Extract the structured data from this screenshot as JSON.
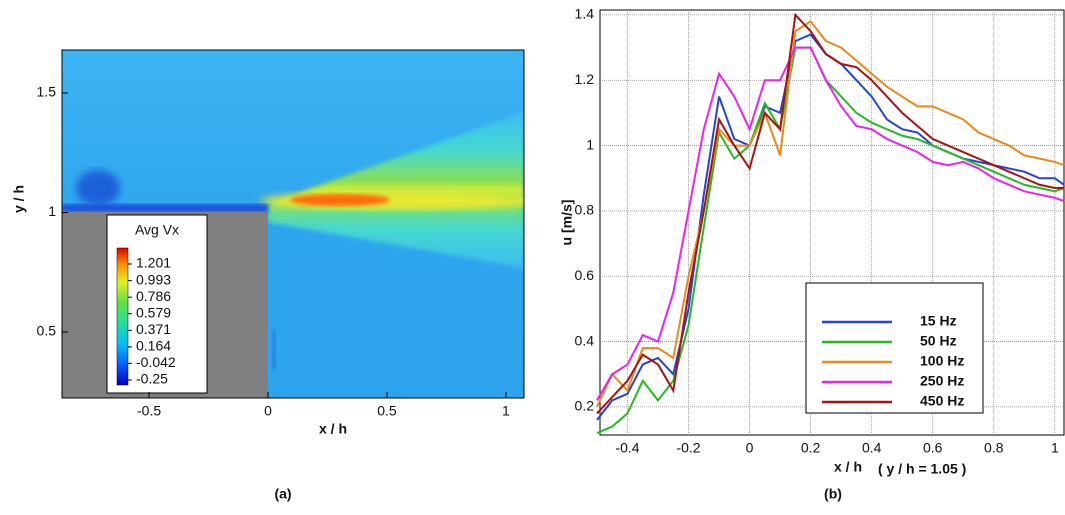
{
  "chart_data": [
    {
      "type": "heatmap",
      "caption": "(a)",
      "xlabel": "x / h",
      "ylabel": "y / h",
      "xlim": [
        -0.866,
        1.076
      ],
      "ylim": [
        0.224,
        1.68
      ],
      "xticks": [
        -0.5,
        0,
        0.5,
        1
      ],
      "yticks": [
        0.5,
        1,
        1.5
      ],
      "colorbar": {
        "title": "Avg Vx",
        "ticks": [
          1.201,
          0.993,
          0.786,
          0.579,
          0.371,
          0.164,
          -0.042,
          -0.25
        ]
      }
    },
    {
      "type": "line",
      "caption": "(b)",
      "xlabel": "x / h",
      "xlabel_note": "( y / h = 1.05 )",
      "ylabel": "u [m/s]",
      "xlim": [
        -0.49,
        1.03
      ],
      "ylim": [
        0.114,
        1.415
      ],
      "xticks": [
        -0.4,
        -0.2,
        0,
        0.2,
        0.4,
        0.6,
        0.8,
        1
      ],
      "yticks": [
        0.2,
        0.4,
        0.6,
        0.8,
        1,
        1.2,
        1.4
      ],
      "grid": true,
      "legend_position": "lower right",
      "x": [
        -0.5,
        -0.45,
        -0.4,
        -0.35,
        -0.3,
        -0.25,
        -0.2,
        -0.15,
        -0.1,
        -0.05,
        0,
        0.05,
        0.1,
        0.15,
        0.2,
        0.25,
        0.3,
        0.35,
        0.4,
        0.45,
        0.5,
        0.55,
        0.6,
        0.65,
        0.7,
        0.75,
        0.8,
        0.85,
        0.9,
        0.95,
        1.0,
        1.03
      ],
      "series": [
        {
          "name": "15 Hz",
          "color": "#2244dd",
          "values": [
            0.16,
            0.22,
            0.24,
            0.33,
            0.35,
            0.3,
            0.5,
            0.85,
            1.15,
            1.02,
            1.0,
            1.12,
            1.1,
            1.32,
            1.34,
            1.28,
            1.25,
            1.2,
            1.15,
            1.08,
            1.05,
            1.04,
            1.0,
            0.98,
            0.96,
            0.95,
            0.94,
            0.93,
            0.92,
            0.9,
            0.9,
            0.88
          ]
        },
        {
          "name": "50 Hz",
          "color": "#22bb22",
          "values": [
            0.12,
            0.14,
            0.18,
            0.28,
            0.22,
            0.28,
            0.45,
            0.75,
            1.04,
            0.96,
            1.0,
            1.13,
            1.05,
            1.3,
            1.3,
            1.2,
            1.15,
            1.1,
            1.07,
            1.05,
            1.03,
            1.02,
            1.0,
            0.98,
            0.96,
            0.94,
            0.92,
            0.9,
            0.88,
            0.87,
            0.86,
            0.87
          ]
        },
        {
          "name": "100 Hz",
          "color": "#e88a1a",
          "values": [
            0.2,
            0.3,
            0.25,
            0.38,
            0.38,
            0.35,
            0.6,
            0.8,
            1.05,
            1.0,
            1.0,
            1.1,
            0.97,
            1.35,
            1.38,
            1.32,
            1.3,
            1.26,
            1.22,
            1.18,
            1.15,
            1.12,
            1.12,
            1.1,
            1.08,
            1.04,
            1.02,
            1.0,
            0.97,
            0.96,
            0.95,
            0.94
          ]
        },
        {
          "name": "250 Hz",
          "color": "#ee22ee",
          "values": [
            0.22,
            0.3,
            0.33,
            0.42,
            0.4,
            0.55,
            0.8,
            1.05,
            1.22,
            1.15,
            1.05,
            1.2,
            1.2,
            1.3,
            1.3,
            1.2,
            1.12,
            1.06,
            1.05,
            1.02,
            1.0,
            0.98,
            0.95,
            0.94,
            0.95,
            0.93,
            0.9,
            0.88,
            0.86,
            0.85,
            0.84,
            0.83
          ]
        },
        {
          "name": "450 Hz",
          "color": "#aa1111",
          "values": [
            0.18,
            0.23,
            0.28,
            0.36,
            0.33,
            0.25,
            0.55,
            0.8,
            1.08,
            1.0,
            0.93,
            1.1,
            1.05,
            1.4,
            1.35,
            1.28,
            1.25,
            1.24,
            1.2,
            1.15,
            1.1,
            1.06,
            1.02,
            1.0,
            0.98,
            0.96,
            0.94,
            0.92,
            0.9,
            0.88,
            0.87,
            0.87
          ]
        }
      ]
    }
  ]
}
